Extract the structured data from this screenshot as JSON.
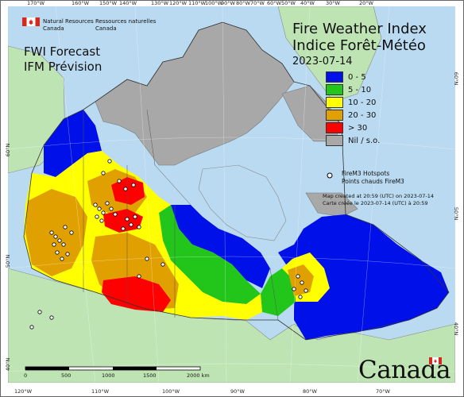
{
  "header": {
    "title_en": "Fire Weather Index",
    "title_fr": "Indice Forêt-Météo",
    "date": "2023-07-14"
  },
  "forecast": {
    "line1": "FWI Forecast",
    "line2": "IFM Prévision"
  },
  "agency": {
    "en_line1": "Natural Resources",
    "en_line2": "Canada",
    "fr_line1": "Ressources naturelles",
    "fr_line2": "Canada"
  },
  "legend": {
    "classes": [
      {
        "label": "0 - 5",
        "color": "#0010e8"
      },
      {
        "label": "5 - 10",
        "color": "#22c61a"
      },
      {
        "label": "10 - 20",
        "color": "#ffff00"
      },
      {
        "label": "20 - 30",
        "color": "#e0a000"
      },
      {
        "label": "> 30",
        "color": "#ff0000"
      },
      {
        "label": "Nil / s.o.",
        "color": "#a8a8a8"
      }
    ],
    "hotspots_en": "FireM3 Hotspots",
    "hotspots_fr": "Points chauds FireM3"
  },
  "notes": {
    "created_en": "Map created at 20:59 (UTC) on 2023-07-14",
    "created_fr": "Carte créée le 2023-07-14 (UTC) à 20:59"
  },
  "top_longitudes": [
    "170°W",
    "160°W",
    "150°W",
    "140°W",
    "130°W",
    "120°W",
    "110°W",
    "100°W",
    "90°W",
    "80°W",
    "70°W",
    "60°W",
    "50°W",
    "40°W",
    "30°W",
    "20°W"
  ],
  "bottom_longitudes": [
    "120°W",
    "110°W",
    "100°W",
    "90°W",
    "80°W",
    "70°W"
  ],
  "left_latitudes": [
    "60°N",
    "50°N",
    "40°N"
  ],
  "right_latitudes": [
    "60°N",
    "50°N",
    "40°N"
  ],
  "scale": {
    "ticks": [
      "0",
      "500",
      "1000",
      "1500",
      "2000 km"
    ]
  },
  "wordmark": "Canada",
  "colors": {
    "water": "#b9daf0",
    "other_land": "#bfe4b4",
    "nil": "#a8a8a8",
    "hotspot_fill": "#ffffff",
    "hotspot_stroke": "#000000"
  }
}
